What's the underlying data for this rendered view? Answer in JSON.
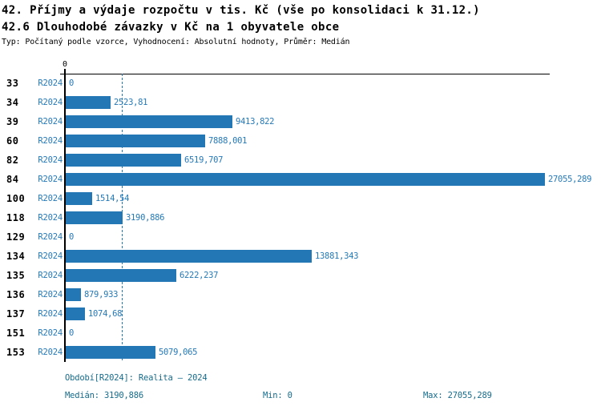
{
  "header": {
    "title_line1": "42. Příjmy a výdaje rozpočtu v tis. Kč (vše po konsolidaci k 31.12.)",
    "title_line2": "42.6 Dlouhodobé závazky v Kč na 1 obyvatele obce",
    "meta": "Typ: Počítaný podle vzorce, Vyhodnocení: Absolutní hodnoty, Průměr: Medián"
  },
  "chart_data": {
    "type": "bar",
    "orientation": "horizontal",
    "title": "42. Příjmy a výdaje rozpočtu v tis. Kč (vše po konsolidaci k 31.12.)",
    "subtitle": "42.6 Dlouhodobé závazky v Kč na 1 obyvatele obce",
    "note": "Typ: Počítaný podle vzorce, Vyhodnocení: Absolutní hodnoty, Průměr: Medián",
    "categories": [
      "33",
      "34",
      "39",
      "60",
      "82",
      "84",
      "100",
      "118",
      "129",
      "134",
      "135",
      "136",
      "137",
      "151",
      "153"
    ],
    "series": [
      {
        "name": "R2024",
        "values": [
          0,
          2523.81,
          9413.822,
          7888.001,
          6519.707,
          27055.289,
          1514.54,
          3190.886,
          0,
          13881.343,
          6222.237,
          879.933,
          1074.68,
          0,
          5079.065
        ],
        "value_labels": [
          "0",
          "2523,81",
          "9413,822",
          "7888,001",
          "6519,707",
          "27055,289",
          "1514,54",
          "3190,886",
          "0",
          "13881,343",
          "6222,237",
          "879,933",
          "1074,68",
          "0",
          "5079,065"
        ]
      }
    ],
    "x_axis": {
      "tick_labels": [
        "0"
      ],
      "range": [
        0,
        27372
      ],
      "grid": false
    },
    "median_value": 3190.886,
    "min_value": 0,
    "max_value": 27055.289,
    "legend_position": "none",
    "colors": {
      "bar": "#2277b4",
      "value_label": "#2479b8",
      "median_line": "#2479b8",
      "footer_text": "#176c8c",
      "axis": "#000000"
    }
  },
  "footer": {
    "period_line": "Období[R2024]: Realita – 2024",
    "median_label": "Medián: 3190,886",
    "min_label": "Min: 0",
    "max_label": "Max: 27055,289"
  }
}
